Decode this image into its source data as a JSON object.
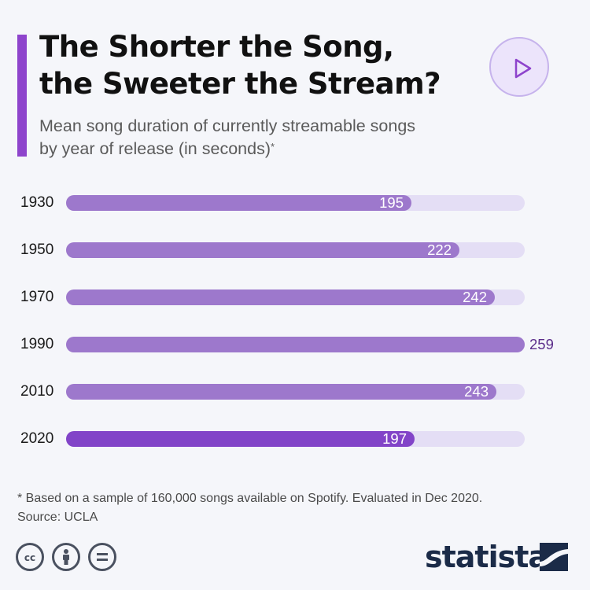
{
  "header": {
    "title_line1": "The Shorter the Song,",
    "title_line2": "the Sweeter the Stream?",
    "subtitle_line1": "Mean song duration of currently streamable songs",
    "subtitle_line2": "by year of release (in seconds)",
    "subtitle_marker": "*"
  },
  "play_icon": "play-icon",
  "chart_data": {
    "type": "bar",
    "orientation": "horizontal",
    "title": "The Shorter the Song, the Sweeter the Stream?",
    "subtitle": "Mean song duration of currently streamable songs by year of release (in seconds)*",
    "categories": [
      "1930",
      "1950",
      "1970",
      "1990",
      "2010",
      "2020"
    ],
    "values": [
      195,
      222,
      242,
      259,
      243,
      197
    ],
    "xlim": [
      0,
      259
    ],
    "highlighted_category": "2020",
    "colors": {
      "bar": "#9d78cc",
      "highlight_bar": "#8244c8",
      "track": "#e4def5",
      "accent": "#8e44cc"
    },
    "grid": false
  },
  "footer": {
    "note": "* Based on a sample of 160,000 songs available on Spotify. Evaluated in Dec 2020.",
    "source": "Source: UCLA",
    "license_icons": [
      "cc-icon",
      "attribution-icon",
      "no-derivatives-icon"
    ],
    "brand": "statista"
  }
}
